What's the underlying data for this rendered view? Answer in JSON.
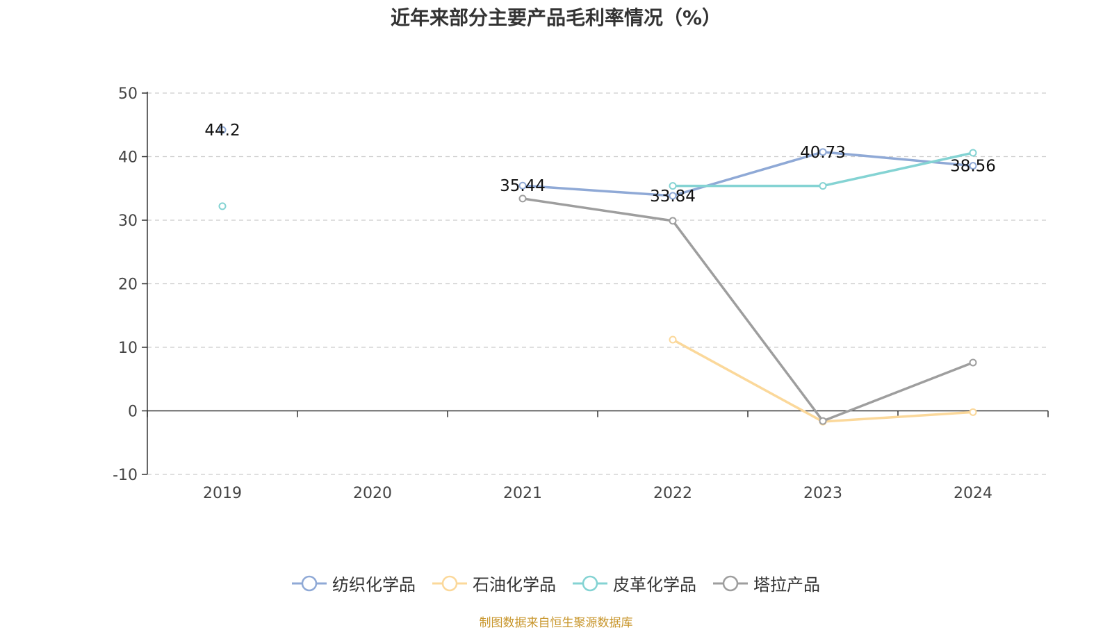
{
  "chart_data": {
    "type": "line",
    "title": "近年来部分主要产品毛利率情况（%）",
    "categories": [
      "2019",
      "2020",
      "2021",
      "2022",
      "2023",
      "2024"
    ],
    "ylim": [
      -10,
      50
    ],
    "yticks": [
      50,
      40,
      30,
      20,
      10,
      0,
      -10
    ],
    "grid": true,
    "legend_position": "bottom",
    "series": [
      {
        "name": "纺织化学品",
        "color": "#8fa9d6",
        "values": [
          44.2,
          null,
          35.44,
          33.84,
          40.73,
          38.56
        ],
        "labels": [
          "44.2",
          null,
          "35.44",
          "33.84",
          "40.73",
          "38.56"
        ]
      },
      {
        "name": "石油化学品",
        "color": "#fbd89a",
        "values": [
          null,
          null,
          null,
          11.2,
          -1.7,
          -0.2
        ]
      },
      {
        "name": "皮革化学品",
        "color": "#84d3d3",
        "values": [
          32.2,
          null,
          null,
          35.4,
          35.4,
          40.6
        ]
      },
      {
        "name": "塔拉产品",
        "color": "#9e9e9e",
        "values": [
          null,
          null,
          33.4,
          29.9,
          -1.6,
          7.6
        ]
      }
    ]
  },
  "source": "制图数据来自恒生聚源数据库"
}
